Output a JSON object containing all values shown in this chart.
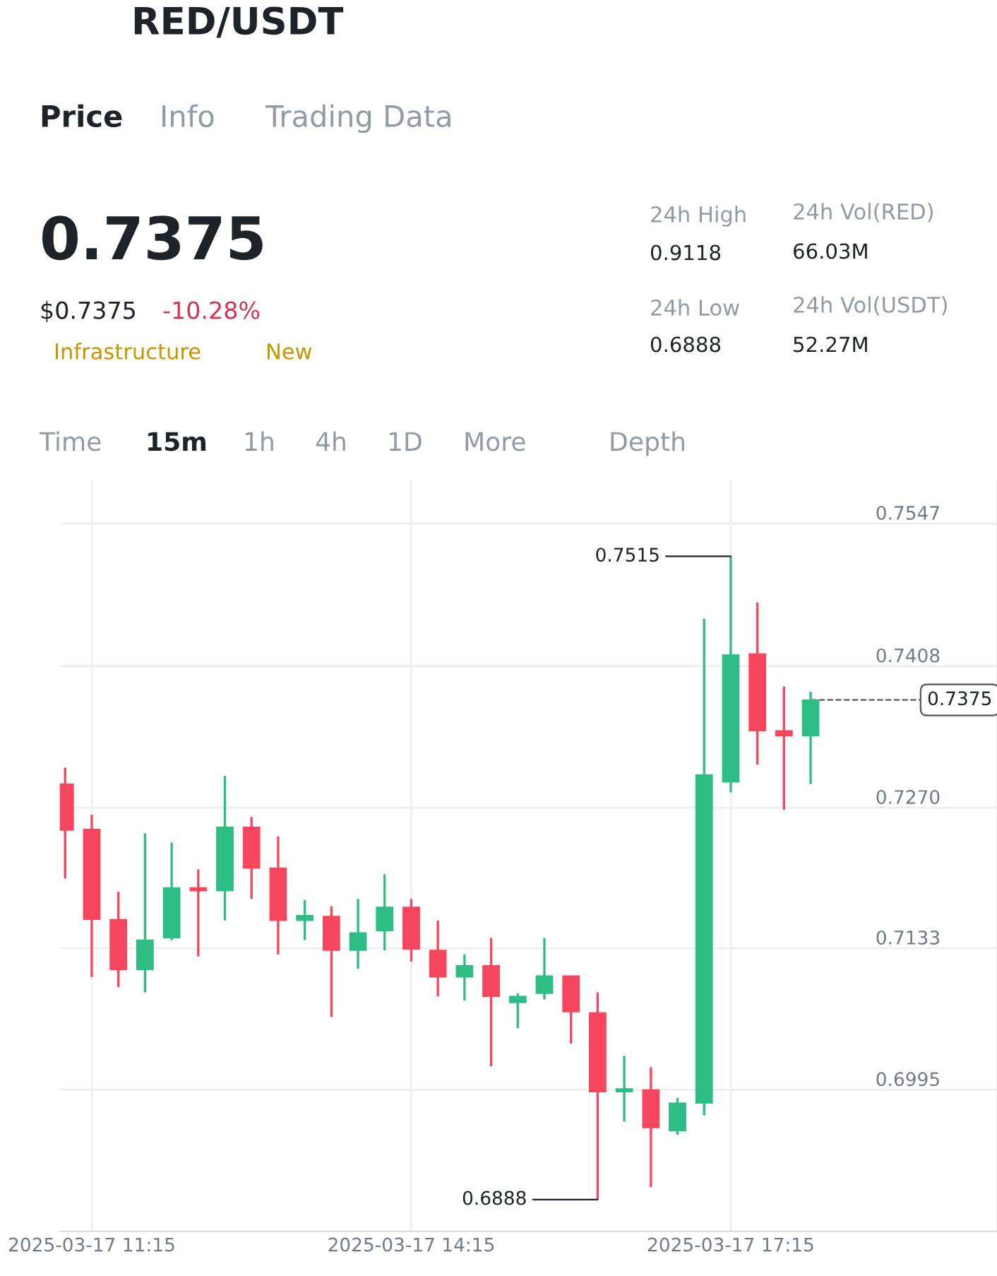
{
  "chart_data": [
    {
      "type": "other",
      "title": "RED/USDT",
      "annotations": [
        "Price",
        "Info",
        "Trading Data",
        "0.7375",
        "$0.7375",
        "-10.28%",
        "Infrastructure",
        "New",
        "24h High",
        "0.9118",
        "24h Vol(RED)",
        "66.03M",
        "24h Low",
        "0.6888",
        "24h Vol(USDT)",
        "52.27M",
        "Time",
        "15m",
        "1h",
        "4h",
        "1D",
        "More",
        "Depth"
      ]
    },
    {
      "type": "candlestick",
      "x": [
        "2025-03-17T11:00",
        "2025-03-17T11:15",
        "2025-03-17T11:30",
        "2025-03-17T11:45",
        "2025-03-17T12:00",
        "2025-03-17T12:15",
        "2025-03-17T12:30",
        "2025-03-17T12:45",
        "2025-03-17T13:00",
        "2025-03-17T13:15",
        "2025-03-17T13:30",
        "2025-03-17T13:45",
        "2025-03-17T14:00",
        "2025-03-17T14:15",
        "2025-03-17T14:30",
        "2025-03-17T14:45",
        "2025-03-17T15:00",
        "2025-03-17T15:15",
        "2025-03-17T15:30",
        "2025-03-17T15:45",
        "2025-03-17T16:00",
        "2025-03-17T16:15",
        "2025-03-17T16:30",
        "2025-03-17T16:45",
        "2025-03-17T17:00",
        "2025-03-17T17:15",
        "2025-03-17T17:30",
        "2025-03-17T17:45",
        "2025-03-17T18:00"
      ],
      "ohlc": [
        [
          0.7293,
          0.7309,
          0.7201,
          0.7248
        ],
        [
          0.7249,
          0.7263,
          0.7105,
          0.7161
        ],
        [
          0.7161,
          0.7188,
          0.7095,
          0.7112
        ],
        [
          0.7112,
          0.7245,
          0.709,
          0.7141
        ],
        [
          0.7143,
          0.7236,
          0.7141,
          0.7192
        ],
        [
          0.7192,
          0.721,
          0.7125,
          0.7189
        ],
        [
          0.7189,
          0.7301,
          0.716,
          0.7251
        ],
        [
          0.7251,
          0.7261,
          0.7181,
          0.7211
        ],
        [
          0.7211,
          0.7242,
          0.7127,
          0.716
        ],
        [
          0.716,
          0.718,
          0.7141,
          0.7165
        ],
        [
          0.7164,
          0.7174,
          0.7066,
          0.7131
        ],
        [
          0.7131,
          0.7181,
          0.7113,
          0.7148
        ],
        [
          0.715,
          0.7205,
          0.7131,
          0.7173
        ],
        [
          0.7173,
          0.7181,
          0.712,
          0.7132
        ],
        [
          0.7131,
          0.716,
          0.7086,
          0.7105
        ],
        [
          0.7105,
          0.7127,
          0.7082,
          0.7116
        ],
        [
          0.7116,
          0.7143,
          0.7018,
          0.7086
        ],
        [
          0.708,
          0.7089,
          0.7055,
          0.7086
        ],
        [
          0.7089,
          0.7143,
          0.7083,
          0.7106
        ],
        [
          0.7106,
          0.7106,
          0.704,
          0.7071
        ],
        [
          0.707,
          0.709,
          0.6888,
          0.6993
        ],
        [
          0.6993,
          0.7028,
          0.6964,
          0.6996
        ],
        [
          0.6995,
          0.7017,
          0.69,
          0.6958
        ],
        [
          0.6955,
          0.6987,
          0.6951,
          0.6982
        ],
        [
          0.6982,
          0.7454,
          0.697,
          0.7302
        ],
        [
          0.7295,
          0.7515,
          0.7285,
          0.7419
        ],
        [
          0.742,
          0.747,
          0.7312,
          0.7345
        ],
        [
          0.7345,
          0.7388,
          0.7268,
          0.734
        ],
        [
          0.734,
          0.7383,
          0.7293,
          0.7375
        ]
      ],
      "colors": [
        "#f6465d",
        "#f6465d",
        "#f6465d",
        "#2ebd85",
        "#2ebd85",
        "#f6465d",
        "#2ebd85",
        "#f6465d",
        "#f6465d",
        "#2ebd85",
        "#f6465d",
        "#2ebd85",
        "#2ebd85",
        "#f6465d",
        "#f6465d",
        "#2ebd85",
        "#f6465d",
        "#2ebd85",
        "#2ebd85",
        "#f6465d",
        "#f6465d",
        "#2ebd85",
        "#f6465d",
        "#2ebd85",
        "#2ebd85",
        "#2ebd85",
        "#f6465d",
        "#f6465d",
        "#2ebd85"
      ],
      "xlim": [
        "2025-03-17T10:57",
        "2025-03-17T19:45"
      ],
      "xticks": [
        {
          "value": "2025-03-17T11:15",
          "label": "2025-03-17 11:15"
        },
        {
          "value": "2025-03-17T14:15",
          "label": "2025-03-17 14:15"
        },
        {
          "value": "2025-03-17T17:15",
          "label": "2025-03-17 17:15"
        }
      ],
      "ylim": [
        0.6857,
        0.7589
      ],
      "yticks": [
        0.6995,
        0.7133,
        {
          "value": 0.727,
          "label": "0.7270"
        },
        0.7408,
        0.7547
      ],
      "grid": true,
      "ref_lines": [
        {
          "axis": "y",
          "value": 0.7375,
          "label": "0.7375",
          "line_style": "dashed"
        }
      ],
      "annotations": [
        {
          "text": "0.7515",
          "x": "2025-03-17T17:15",
          "y": 0.7515
        },
        {
          "text": "0.6888",
          "x": "2025-03-17T16:00",
          "y": 0.6888
        }
      ]
    }
  ]
}
